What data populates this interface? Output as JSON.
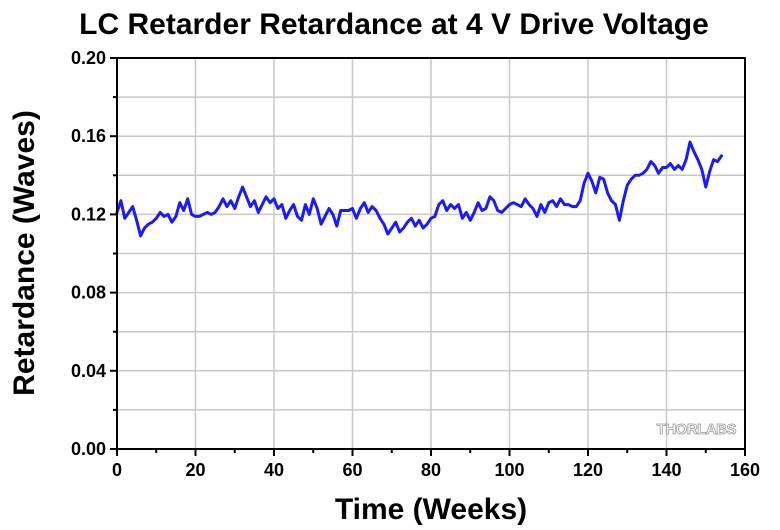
{
  "chart_data": {
    "type": "line",
    "title": "LC Retarder Retardance at 4 V Drive Voltage",
    "xlabel": "Time (Weeks)",
    "ylabel": "Retardance (Waves)",
    "xlim": [
      0,
      160
    ],
    "ylim": [
      0.0,
      0.2
    ],
    "x_ticks": [
      0,
      20,
      40,
      60,
      80,
      100,
      120,
      140,
      160
    ],
    "y_ticks": [
      0.0,
      0.04,
      0.08,
      0.12,
      0.16,
      0.2
    ],
    "x_tick_labels": [
      "0",
      "20",
      "40",
      "60",
      "80",
      "100",
      "120",
      "140",
      "160"
    ],
    "y_tick_labels": [
      "0.00",
      "0.04",
      "0.08",
      "0.12",
      "0.16",
      "0.20"
    ],
    "grid": true,
    "series": [
      {
        "color": "#1a1aff",
        "x": [
          0,
          1,
          2,
          3,
          4,
          5,
          6,
          7,
          8,
          9,
          10,
          11,
          12,
          13,
          14,
          15,
          16,
          17,
          18,
          19,
          20,
          21,
          22,
          23,
          24,
          25,
          26,
          27,
          28,
          29,
          30,
          31,
          32,
          33,
          34,
          35,
          36,
          37,
          38,
          39,
          40,
          41,
          42,
          43,
          44,
          45,
          46,
          47,
          48,
          49,
          50,
          51,
          52,
          53,
          54,
          55,
          56,
          57,
          58,
          59,
          60,
          61,
          62,
          63,
          64,
          65,
          66,
          67,
          68,
          69,
          70,
          71,
          72,
          73,
          74,
          75,
          76,
          77,
          78,
          79,
          80,
          81,
          82,
          83,
          84,
          85,
          86,
          87,
          88,
          89,
          90,
          91,
          92,
          93,
          94,
          95,
          96,
          97,
          98,
          99,
          100,
          101,
          102,
          103,
          104,
          105,
          106,
          107,
          108,
          109,
          110,
          111,
          112,
          113,
          114,
          115,
          116,
          117,
          118,
          119,
          120,
          121,
          122,
          123,
          124,
          125,
          126,
          127,
          128,
          129,
          130,
          131,
          132,
          133,
          134,
          135,
          136,
          137,
          138,
          139,
          140,
          141,
          142,
          143,
          144,
          145,
          146,
          147,
          148,
          149,
          150,
          151,
          152,
          153,
          154
        ],
        "y": [
          0.121,
          0.127,
          0.118,
          0.121,
          0.124,
          0.117,
          0.109,
          0.113,
          0.115,
          0.116,
          0.118,
          0.121,
          0.119,
          0.12,
          0.116,
          0.119,
          0.126,
          0.122,
          0.128,
          0.12,
          0.119,
          0.119,
          0.12,
          0.121,
          0.12,
          0.121,
          0.124,
          0.128,
          0.124,
          0.127,
          0.123,
          0.129,
          0.134,
          0.129,
          0.124,
          0.127,
          0.121,
          0.125,
          0.129,
          0.126,
          0.128,
          0.123,
          0.125,
          0.118,
          0.122,
          0.125,
          0.119,
          0.117,
          0.125,
          0.12,
          0.128,
          0.123,
          0.115,
          0.119,
          0.123,
          0.12,
          0.114,
          0.122,
          0.122,
          0.122,
          0.123,
          0.118,
          0.123,
          0.126,
          0.121,
          0.124,
          0.122,
          0.118,
          0.115,
          0.11,
          0.113,
          0.116,
          0.111,
          0.113,
          0.116,
          0.118,
          0.114,
          0.117,
          0.113,
          0.115,
          0.118,
          0.119,
          0.125,
          0.127,
          0.122,
          0.125,
          0.123,
          0.125,
          0.118,
          0.121,
          0.117,
          0.121,
          0.126,
          0.122,
          0.123,
          0.129,
          0.127,
          0.122,
          0.121,
          0.123,
          0.125,
          0.126,
          0.125,
          0.124,
          0.128,
          0.125,
          0.123,
          0.119,
          0.125,
          0.121,
          0.126,
          0.127,
          0.124,
          0.128,
          0.125,
          0.125,
          0.124,
          0.124,
          0.127,
          0.136,
          0.141,
          0.137,
          0.131,
          0.139,
          0.138,
          0.131,
          0.127,
          0.125,
          0.117,
          0.127,
          0.135,
          0.138,
          0.14,
          0.14,
          0.141,
          0.143,
          0.147,
          0.145,
          0.141,
          0.144,
          0.144,
          0.146,
          0.143,
          0.145,
          0.143,
          0.148,
          0.157,
          0.152,
          0.148,
          0.143,
          0.134,
          0.142,
          0.148,
          0.147,
          0.15
        ]
      }
    ]
  },
  "watermark": "THORLABS"
}
